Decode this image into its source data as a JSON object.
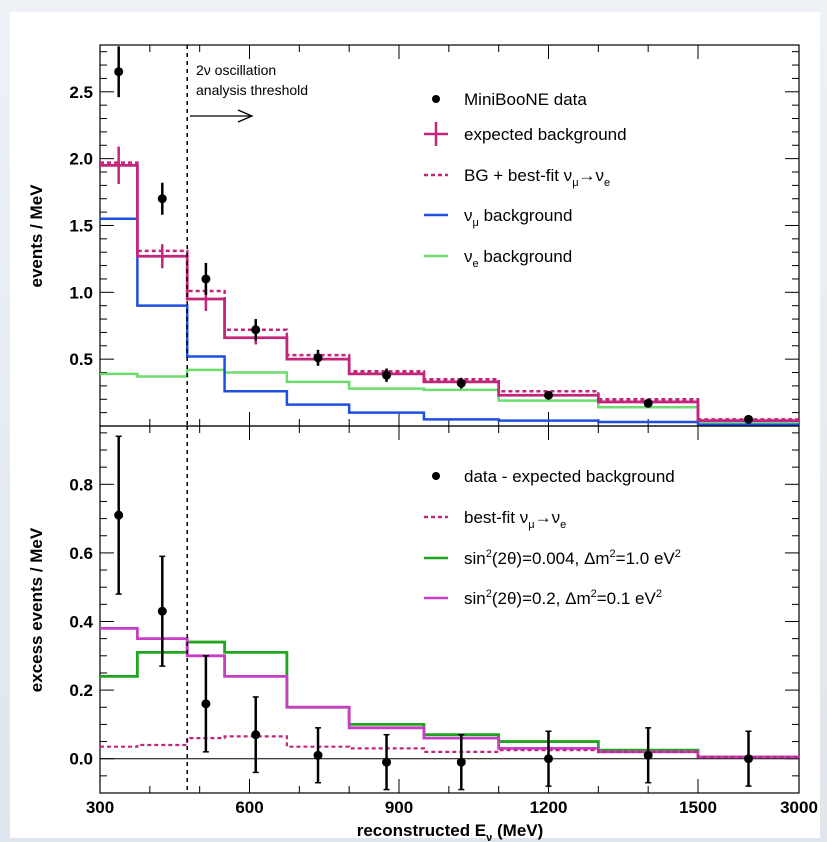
{
  "colors": {
    "data": "#000000",
    "expected_bg": "#c2267a",
    "bestfit": "#c2267a",
    "numu": "#1f4fe0",
    "nue": "#6edc6e",
    "green_model": "#1fa51f",
    "magenta_model": "#c63ec6"
  },
  "chart_data": [
    {
      "type": "line",
      "panel": "top",
      "ylabel": "events / MeV",
      "ylim": [
        0,
        2.85
      ],
      "yticks": [
        "0.5",
        "1.0",
        "1.5",
        "2.0",
        "2.5"
      ],
      "bin_edges": [
        300,
        375,
        475,
        550,
        675,
        800,
        950,
        1100,
        1300,
        1500,
        3000
      ],
      "threshold": {
        "x": 475,
        "label_line1": "2ν oscillation",
        "label_line2": "analysis threshold"
      },
      "legend": {
        "data": "MiniBooNE data",
        "expected_bg": "expected background",
        "bestfit": {
          "pre": "BG + best-fit ν",
          "sub1": "μ",
          "mid": "→ν",
          "sub2": "e"
        },
        "numu": {
          "pre": "ν",
          "sub": "μ",
          "post": " background"
        },
        "nue": {
          "pre": "ν",
          "sub": "e",
          "post": " background"
        }
      },
      "series": {
        "data_points": {
          "x": [
            337.5,
            425,
            512.5,
            612.5,
            737.5,
            875,
            1025,
            1200,
            1400,
            2250
          ],
          "y": [
            2.65,
            1.7,
            1.1,
            0.72,
            0.51,
            0.38,
            0.32,
            0.23,
            0.17,
            0.05
          ],
          "err": [
            0.19,
            0.12,
            0.12,
            0.08,
            0.06,
            0.05,
            0.04,
            0.03,
            0.02,
            0.01
          ]
        },
        "expected_bg": {
          "y": [
            1.95,
            1.27,
            0.95,
            0.66,
            0.5,
            0.39,
            0.33,
            0.23,
            0.18,
            0.04
          ],
          "err": [
            0.14,
            0.09,
            0.09,
            0.05,
            0.04,
            0.03,
            0.03,
            0.02,
            0.015,
            0.006
          ]
        },
        "bestfit_total": {
          "y": [
            1.97,
            1.31,
            1.01,
            0.72,
            0.53,
            0.41,
            0.35,
            0.26,
            0.2,
            0.05
          ]
        },
        "numu_bg": {
          "y": [
            1.55,
            0.9,
            0.52,
            0.26,
            0.16,
            0.1,
            0.05,
            0.04,
            0.03,
            0.01
          ]
        },
        "nue_bg": {
          "y": [
            0.39,
            0.37,
            0.42,
            0.4,
            0.33,
            0.28,
            0.27,
            0.19,
            0.14,
            0.03
          ]
        }
      }
    },
    {
      "type": "line",
      "panel": "bottom",
      "xlabel": {
        "pre": "reconstructed E",
        "sub": "ν",
        "post": " (MeV)"
      },
      "ylabel": "excess events / MeV",
      "ylim": [
        -0.1,
        0.97
      ],
      "yticks": [
        "0.0",
        "0.2",
        "0.4",
        "0.6",
        "0.8"
      ],
      "xticks": [
        "300",
        "600",
        "900",
        "1200",
        "1500",
        "3000"
      ],
      "bin_edges": [
        300,
        375,
        475,
        550,
        675,
        800,
        950,
        1100,
        1300,
        1500,
        3000
      ],
      "threshold": {
        "x": 475
      },
      "legend": {
        "excess": "data - expected background",
        "bestfit": {
          "pre": "best-fit ν",
          "sub1": "μ",
          "mid": "→ν",
          "sub2": "e"
        },
        "green_model": {
          "a": "sin",
          "sup1": "2",
          "b": "(2θ)=0.004, Δm",
          "sup2": "2",
          "c": "=1.0 eV",
          "sup3": "2"
        },
        "magenta_model": {
          "a": "sin",
          "sup1": "2",
          "b": "(2θ)=0.2, Δm",
          "sup2": "2",
          "c": "=0.1 eV",
          "sup3": "2"
        }
      },
      "series": {
        "excess_points": {
          "x": [
            337.5,
            425,
            512.5,
            612.5,
            737.5,
            875,
            1025,
            1200,
            1400,
            2250
          ],
          "y": [
            0.71,
            0.43,
            0.16,
            0.07,
            0.01,
            -0.01,
            -0.01,
            0.0,
            0.01,
            0.0
          ],
          "err": [
            0.23,
            0.16,
            0.14,
            0.11,
            0.08,
            0.08,
            0.08,
            0.08,
            0.08,
            0.08
          ]
        },
        "bestfit_excess": {
          "y": [
            0.035,
            0.04,
            0.06,
            0.065,
            0.035,
            0.03,
            0.02,
            0.025,
            0.02,
            0.005
          ]
        },
        "green_model": {
          "y": [
            0.24,
            0.31,
            0.34,
            0.31,
            0.15,
            0.1,
            0.07,
            0.05,
            0.025,
            0.005
          ]
        },
        "magenta_model": {
          "y": [
            0.38,
            0.35,
            0.3,
            0.24,
            0.15,
            0.09,
            0.06,
            0.03,
            0.02,
            0.005
          ]
        }
      }
    }
  ]
}
